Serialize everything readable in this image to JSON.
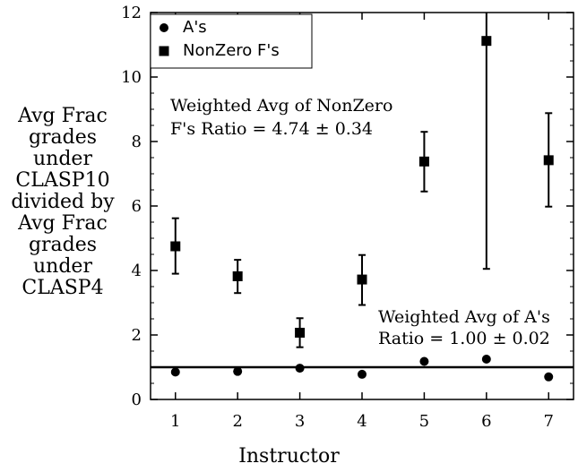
{
  "chart_data": {
    "type": "scatter",
    "xlabel": "Instructor",
    "ylabel_lines": [
      "Avg Frac",
      "grades",
      "under",
      "CLASP10",
      "divided by",
      "Avg Frac",
      "grades",
      "under",
      "CLASP4"
    ],
    "x": [
      1,
      2,
      3,
      4,
      5,
      6,
      7
    ],
    "xlim": [
      0.6,
      7.4
    ],
    "ylim": [
      0,
      12
    ],
    "xticks": [
      "1",
      "2",
      "3",
      "4",
      "5",
      "6",
      "7"
    ],
    "yticks": [
      "0",
      "2",
      "4",
      "6",
      "8",
      "10",
      "12"
    ],
    "series": [
      {
        "name": "A's",
        "marker": "circle",
        "values": [
          0.85,
          0.87,
          0.97,
          0.78,
          1.18,
          1.25,
          0.7
        ]
      },
      {
        "name": "NonZero F's",
        "marker": "square",
        "values": [
          4.75,
          3.82,
          2.07,
          3.72,
          7.38,
          11.12,
          7.42
        ],
        "err_low": [
          3.9,
          3.3,
          1.62,
          2.93,
          6.45,
          4.05,
          5.98
        ],
        "err_high": [
          5.62,
          4.33,
          2.52,
          4.48,
          8.3,
          12.0,
          8.88
        ]
      }
    ],
    "reference_line": {
      "y": 1.0
    },
    "annotations": [
      {
        "id": "nonzero",
        "lines": [
          "Weighted Avg of NonZero",
          "F's Ratio = 4.74 ± 0.34"
        ]
      },
      {
        "id": "aratio",
        "lines": [
          "Weighted Avg of A's",
          "Ratio = 1.00 ± 0.02"
        ]
      }
    ],
    "legend": {
      "position": "top-left",
      "items": [
        "A's",
        "NonZero F's"
      ]
    },
    "grid": false
  }
}
